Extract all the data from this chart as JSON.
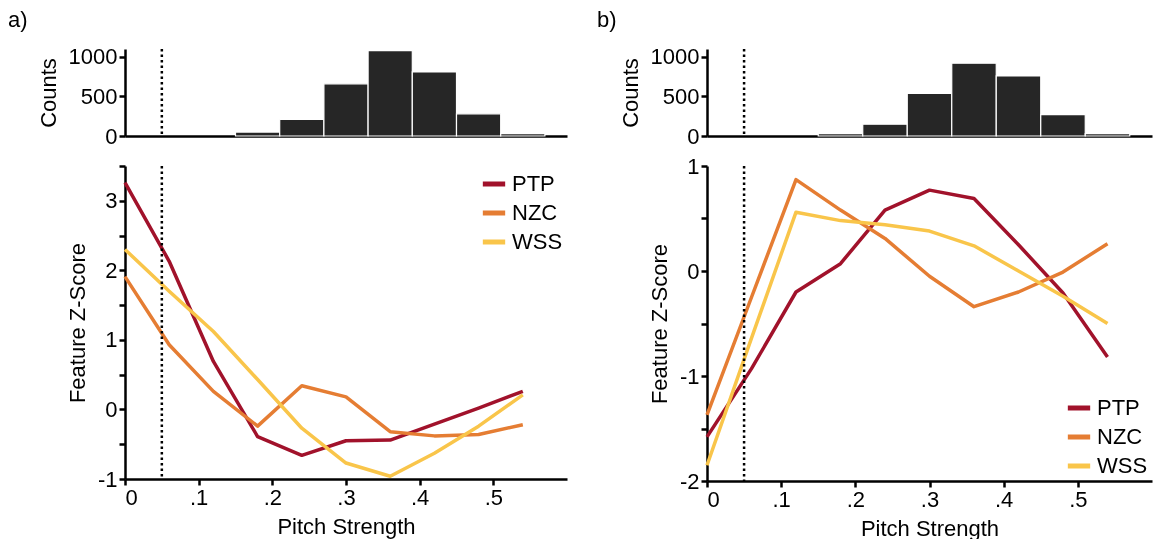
{
  "chart_data": [
    {
      "type": "histogram",
      "title": "a)",
      "ylabel": "Counts",
      "bins": [
        0.15,
        0.21,
        0.27,
        0.33,
        0.39,
        0.45,
        0.51,
        0.57
      ],
      "values": [
        50,
        210,
        660,
        1080,
        810,
        280,
        30
      ],
      "color": "#262626",
      "xlim": [
        0,
        0.6
      ],
      "ylim": [
        0,
        1100
      ],
      "yticks": [
        0,
        500,
        1000
      ],
      "tick_labels": "y",
      "ref_lines": [
        {
          "axis": "x",
          "value": 0.05,
          "line_style": "dotted"
        }
      ]
    },
    {
      "type": "line",
      "xlabel": "Pitch Strength",
      "ylabel": "Feature Z-Score",
      "x": [
        0,
        0.06,
        0.12,
        0.18,
        0.24,
        0.3,
        0.36,
        0.42,
        0.48,
        0.54
      ],
      "series": [
        {
          "name": "PTP",
          "color": "#a1122b",
          "values": [
            3.26,
            2.13,
            0.69,
            -0.39,
            -0.66,
            -0.45,
            -0.44,
            -0.21,
            0.02,
            0.26
          ]
        },
        {
          "name": "NZC",
          "color": "#e57d33",
          "values": [
            1.91,
            0.93,
            0.26,
            -0.24,
            0.34,
            0.18,
            -0.32,
            -0.38,
            -0.36,
            -0.22
          ]
        },
        {
          "name": "WSS",
          "color": "#f9c54a",
          "values": [
            2.3,
            1.7,
            1.12,
            0.43,
            -0.27,
            -0.77,
            -0.96,
            -0.63,
            -0.24,
            0.21
          ]
        }
      ],
      "xlim": [
        0,
        0.6
      ],
      "xticks": [
        0,
        {
          "value": 0.1,
          "label": ".1"
        },
        {
          "value": 0.2,
          "label": ".2"
        },
        {
          "value": 0.3,
          "label": ".3"
        },
        {
          "value": 0.4,
          "label": ".4"
        },
        {
          "value": 0.5,
          "label": ".5"
        }
      ],
      "ylim": [
        -1,
        3.5
      ],
      "yticks": [
        -1,
        {
          "value": -0.5,
          "label": null
        },
        0,
        {
          "value": 0.5,
          "label": null
        },
        1,
        {
          "value": 1.5,
          "label": null
        },
        2,
        {
          "value": 2.5,
          "label": null
        },
        3,
        {
          "value": 3.5,
          "label": null
        }
      ],
      "legend": "top right",
      "line_style": "solid",
      "ref_lines": [
        {
          "axis": "x",
          "value": 0.05,
          "line_style": "dotted"
        }
      ]
    },
    {
      "type": "histogram",
      "title": "b)",
      "ylabel": "Counts",
      "bins": [
        0.15,
        0.21,
        0.27,
        0.33,
        0.39,
        0.45,
        0.51,
        0.57
      ],
      "values": [
        30,
        150,
        540,
        920,
        760,
        270,
        30
      ],
      "color": "#262626",
      "xlim": [
        0,
        0.6
      ],
      "ylim": [
        0,
        1100
      ],
      "yticks": [
        0,
        500,
        1000
      ],
      "tick_labels": "y",
      "ref_lines": [
        {
          "axis": "x",
          "value": 0.05,
          "line_style": "dotted"
        }
      ]
    },
    {
      "type": "line",
      "xlabel": "Pitch Strength",
      "ylabel": "Feature Z-Score",
      "x": [
        0,
        0.06,
        0.12,
        0.18,
        0.24,
        0.3,
        0.36,
        0.42,
        0.48,
        0.54
      ],
      "series": [
        {
          "name": "PTP",
          "color": "#a1122b",
          "values": [
            -1.58,
            -0.93,
            -0.2,
            0.07,
            0.58,
            0.77,
            0.69,
            0.25,
            -0.21,
            -0.82
          ]
        },
        {
          "name": "NZC",
          "color": "#e57d33",
          "values": [
            -1.37,
            -0.25,
            0.87,
            0.58,
            0.31,
            -0.05,
            -0.34,
            -0.2,
            -0.01,
            0.26
          ]
        },
        {
          "name": "WSS",
          "color": "#f9c54a",
          "values": [
            -1.85,
            -0.64,
            0.56,
            0.48,
            0.44,
            0.38,
            0.24,
            0.0,
            -0.24,
            -0.5
          ]
        }
      ],
      "xlim": [
        0,
        0.6
      ],
      "xticks": [
        0,
        {
          "value": 0.1,
          "label": ".1"
        },
        {
          "value": 0.2,
          "label": ".2"
        },
        {
          "value": 0.3,
          "label": ".3"
        },
        {
          "value": 0.4,
          "label": ".4"
        },
        {
          "value": 0.5,
          "label": ".5"
        }
      ],
      "ylim": [
        -2,
        1
      ],
      "yticks": [
        -2,
        {
          "value": -1.5,
          "label": null
        },
        -1,
        {
          "value": -0.5,
          "label": null
        },
        0,
        {
          "value": 0.5,
          "label": null
        },
        1
      ],
      "legend": "bottom right",
      "line_style": "solid",
      "ref_lines": [
        {
          "axis": "x",
          "value": 0.05,
          "line_style": "dotted"
        }
      ]
    }
  ]
}
